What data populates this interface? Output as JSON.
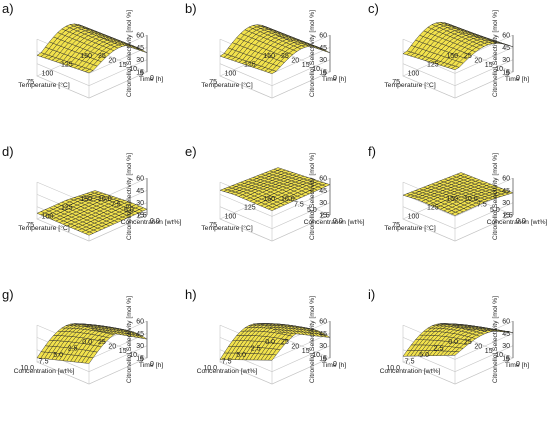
{
  "figure": {
    "panels": [
      "a)",
      "b)",
      "c)",
      "d)",
      "e)",
      "f)",
      "g)",
      "h)",
      "i)"
    ]
  },
  "chart_data": [
    {
      "panel": "a)",
      "type": "surface",
      "zlabel": "Citronellol Selectivity [mol %]",
      "zticks": [
        "15",
        "30",
        "45",
        "60"
      ],
      "zlim": [
        15,
        60
      ],
      "xlabel": "Temperature [°C]",
      "xticks": [
        "75",
        "100",
        "125",
        "150"
      ],
      "xlim": [
        75,
        150
      ],
      "ylabel": "Time [h]",
      "yticks": [
        "0",
        "5",
        "10",
        "15",
        "20",
        "25"
      ],
      "ylim": [
        0,
        25
      ],
      "surface_z_corners": {
        "x_min_y_min": 30,
        "x_max_y_min": 38,
        "x_min_y_max": 36,
        "x_max_y_max": 44
      },
      "surface_z_ridge": 60
    },
    {
      "panel": "b)",
      "type": "surface",
      "zlabel": "Citronellol Selectivity [mol %]",
      "zticks": [
        "15",
        "30",
        "45",
        "60"
      ],
      "zlim": [
        15,
        60
      ],
      "xlabel": "Temperature [°C]",
      "xticks": [
        "75",
        "100",
        "125",
        "150"
      ],
      "xlim": [
        75,
        150
      ],
      "ylabel": "Time [h]",
      "yticks": [
        "0",
        "5",
        "10",
        "15",
        "20",
        "25"
      ],
      "ylim": [
        0,
        25
      ],
      "surface_z_corners": {
        "x_min_y_min": 30,
        "x_max_y_min": 37,
        "x_min_y_max": 36,
        "x_max_y_max": 43
      },
      "surface_z_ridge": 59
    },
    {
      "panel": "c)",
      "type": "surface",
      "zlabel": "Citronellol Selectivity [mol %]",
      "zticks": [
        "15",
        "30",
        "45",
        "60"
      ],
      "zlim": [
        15,
        60
      ],
      "xlabel": "Temperature [°C]",
      "xticks": [
        "75",
        "100",
        "125",
        "150"
      ],
      "xlim": [
        75,
        150
      ],
      "ylabel": "Time [h]",
      "yticks": [
        "0",
        "5",
        "10",
        "15",
        "20",
        "25"
      ],
      "ylim": [
        0,
        25
      ],
      "surface_z_corners": {
        "x_min_y_min": 34,
        "x_max_y_min": 40,
        "x_min_y_max": 44,
        "x_max_y_max": 48
      },
      "surface_z_ridge": 62
    },
    {
      "panel": "d)",
      "type": "surface",
      "zlabel": "Citronellol Selectivity [mol %]",
      "zticks": [
        "15",
        "30",
        "45",
        "60"
      ],
      "zlim": [
        15,
        60
      ],
      "xlabel": "Temperature [°C]",
      "xticks": [
        "75",
        "100",
        "125",
        "150"
      ],
      "xlim": [
        75,
        150
      ],
      "ylabel": "Concentration [wt%]",
      "yticks": [
        "0.0",
        "2.5",
        "5.0",
        "7.5",
        "10.0"
      ],
      "ylim": [
        0,
        10
      ],
      "surface_z_corners": {
        "x_min_y_min": 18,
        "x_max_y_min": 26,
        "x_min_y_max": 24,
        "x_max_y_max": 34
      },
      "surface_z_ridge": 20
    },
    {
      "panel": "e)",
      "type": "surface",
      "zlabel": "Citronellol Selectivity [mol %]",
      "zticks": [
        "15",
        "30",
        "45",
        "60"
      ],
      "zlim": [
        15,
        60
      ],
      "xlabel": "Temperature [°C]",
      "xticks": [
        "75",
        "100",
        "125",
        "150"
      ],
      "xlim": [
        75,
        150
      ],
      "ylabel": "Concentration [wt%]",
      "yticks": [
        "0.0",
        "2.5",
        "5.0",
        "7.5",
        "10.0"
      ],
      "ylim": [
        0,
        10
      ],
      "surface_z_corners": {
        "x_min_y_min": 46,
        "x_max_y_min": 50,
        "x_min_y_max": 52,
        "x_max_y_max": 58
      },
      "surface_z_ridge": 50
    },
    {
      "panel": "f)",
      "type": "surface",
      "zlabel": "Citronellol Selectivity [mol %]",
      "zticks": [
        "15",
        "30",
        "45",
        "60"
      ],
      "zlim": [
        15,
        60
      ],
      "xlabel": "Temperature [°C]",
      "xticks": [
        "75",
        "100",
        "125",
        "150"
      ],
      "xlim": [
        75,
        150
      ],
      "ylabel": "Concentration [wt%]",
      "yticks": [
        "0.0",
        "2.5",
        "5.0",
        "7.5",
        "10.0"
      ],
      "ylim": [
        0,
        10
      ],
      "surface_z_corners": {
        "x_min_y_min": 40,
        "x_max_y_min": 44,
        "x_min_y_max": 42,
        "x_max_y_max": 52
      },
      "surface_z_ridge": 44
    },
    {
      "panel": "g)",
      "type": "surface",
      "zlabel": "Citronellol Selectivity [mol %]",
      "zticks": [
        "15",
        "30",
        "45",
        "60"
      ],
      "zlim": [
        15,
        60
      ],
      "xlabel": "Concentration [wt%]",
      "xticks": [
        "10.0",
        "7.5",
        "5.0",
        "2.5",
        "0.0"
      ],
      "xlim": [
        0,
        10
      ],
      "ylabel": "Time [h]",
      "yticks": [
        "0",
        "5",
        "10",
        "15",
        "20",
        "25"
      ],
      "ylim": [
        0,
        25
      ],
      "surface_z_corners": {
        "x_min_y_min": 22,
        "x_max_y_min": 20,
        "x_min_y_max": 38,
        "x_max_y_max": 40
      },
      "surface_z_ridge": 62
    },
    {
      "panel": "h)",
      "type": "surface",
      "zlabel": "Citronellol Selectivity [mol %]",
      "zticks": [
        "15",
        "30",
        "45",
        "60"
      ],
      "zlim": [
        15,
        60
      ],
      "xlabel": "Concentration [wt%]",
      "xticks": [
        "10.0",
        "7.5",
        "5.0",
        "2.5",
        "0.0"
      ],
      "xlim": [
        0,
        10
      ],
      "ylabel": "Time [h]",
      "yticks": [
        "0",
        "5",
        "10",
        "15",
        "20",
        "25"
      ],
      "ylim": [
        0,
        25
      ],
      "surface_z_corners": {
        "x_min_y_min": 20,
        "x_max_y_min": 18,
        "x_min_y_max": 40,
        "x_max_y_max": 44
      },
      "surface_z_ridge": 64
    },
    {
      "panel": "i)",
      "type": "surface",
      "zlabel": "Citronellol Selectivity [mol %]",
      "zticks": [
        "15",
        "30",
        "45",
        "60"
      ],
      "zlim": [
        15,
        60
      ],
      "xlabel": "Concentration [wt%]",
      "xticks": [
        "10.0",
        "7.5",
        "5.0",
        "2.5",
        "0.0"
      ],
      "xlim": [
        0,
        10
      ],
      "ylabel": "Time [h]",
      "yticks": [
        "0",
        "5",
        "10",
        "15",
        "20",
        "25"
      ],
      "ylim": [
        0,
        25
      ],
      "surface_z_corners": {
        "x_min_y_min": 24,
        "x_max_y_min": 22,
        "x_min_y_max": 46,
        "x_max_y_max": 50
      },
      "surface_z_ridge": 60
    }
  ]
}
